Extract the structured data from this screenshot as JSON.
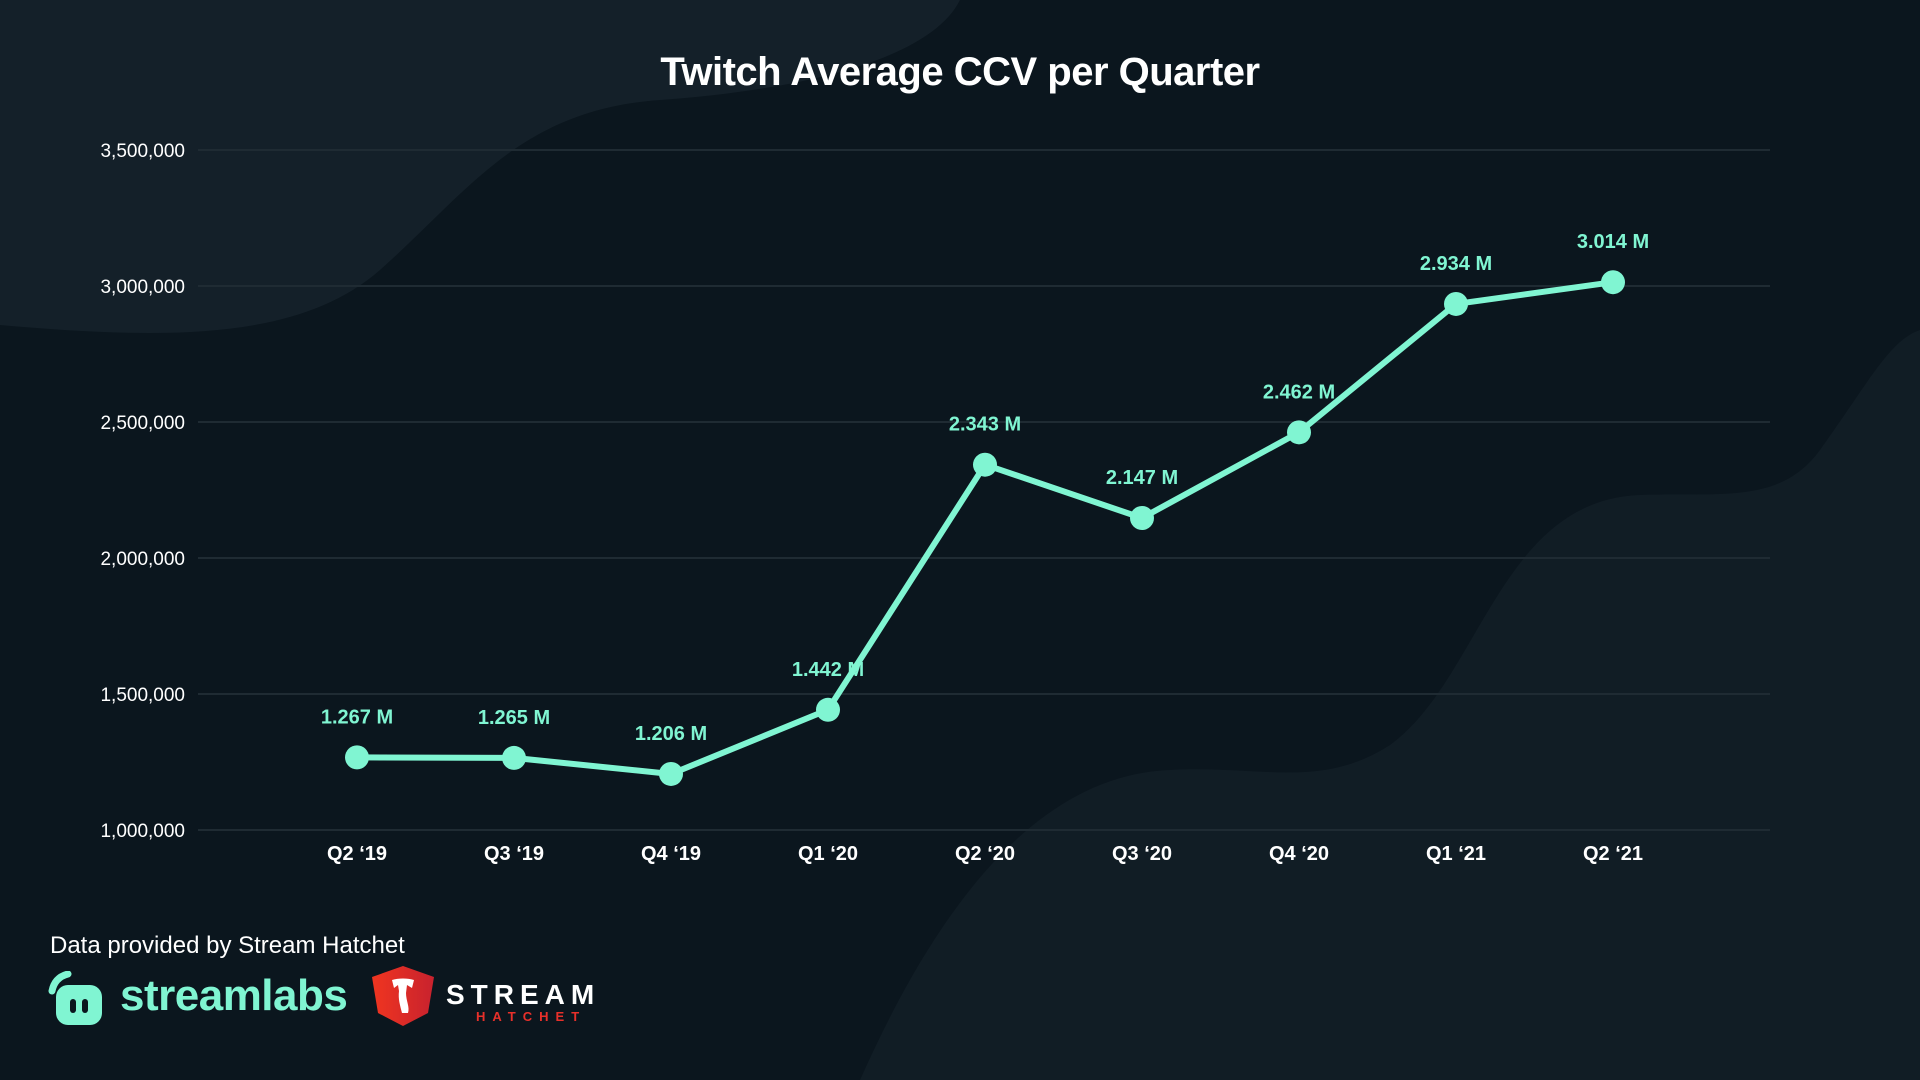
{
  "chart_data": {
    "type": "line",
    "title": "Twitch Average CCV per Quarter",
    "xlabel": "",
    "ylabel": "",
    "categories": [
      "Q2 ‘19",
      "Q3 ‘19",
      "Q4 ‘19",
      "Q1 ‘20",
      "Q2 ‘20",
      "Q3 ‘20",
      "Q4 ‘20",
      "Q1 ‘21",
      "Q2 ‘21"
    ],
    "series": [
      {
        "name": "Average CCV",
        "values": [
          1267000,
          1265000,
          1206000,
          1442000,
          2343000,
          2147000,
          2462000,
          2934000,
          3014000
        ],
        "labels": [
          "1.267 M",
          "1.265 M",
          "1.206 M",
          "1.442 M",
          "2.343 M",
          "2.147 M",
          "2.462 M",
          "2.934 M",
          "3.014 M"
        ],
        "color": "#80f5d2"
      }
    ],
    "ylim": [
      1000000,
      3500000
    ],
    "yticks": [
      1000000,
      1500000,
      2000000,
      2500000,
      3000000,
      3500000
    ],
    "ytick_labels": [
      "1,000,000",
      "1,500,000",
      "2,000,000",
      "2,500,000",
      "3,000,000",
      "3,500,000"
    ],
    "grid": true,
    "legend": "none"
  },
  "footer": {
    "note": "Data provided by Stream Hatchet",
    "streamlabs_logo_text": "streamlabs",
    "streamhatchet_logo_line1": "STREAM",
    "streamhatchet_logo_line2": "HATCHET"
  },
  "colors": {
    "background": "#0b161e",
    "accent": "#80f5d2",
    "grid": "#1f2b33",
    "text": "#ffffff",
    "hatchet_red": "#e8302a"
  }
}
